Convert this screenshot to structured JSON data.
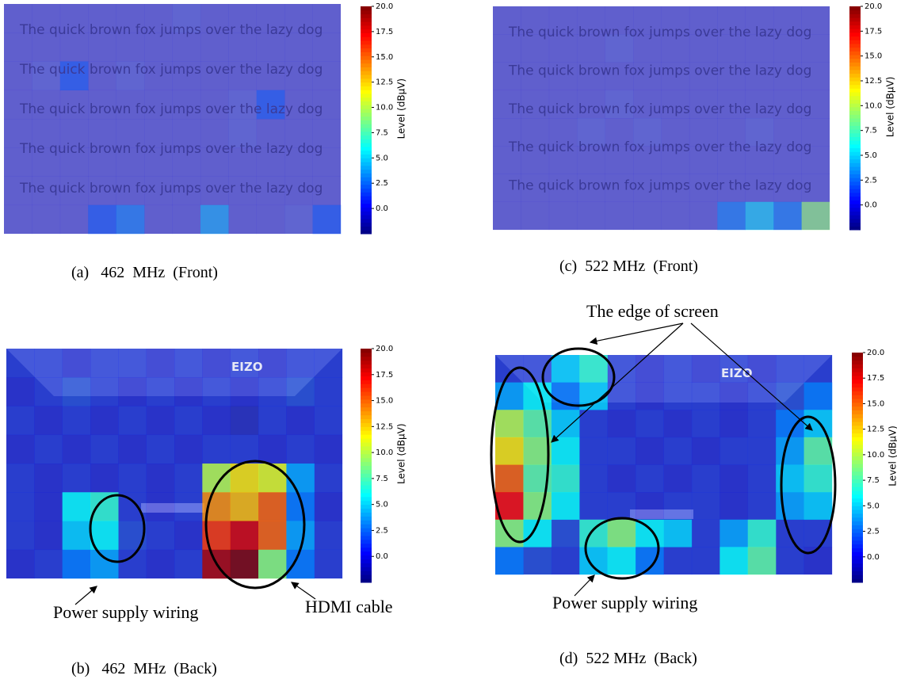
{
  "colorbar": {
    "label": "Level (dBμV)",
    "lim": [
      -2.5,
      20
    ],
    "ticks": [
      {
        "value": 0,
        "label": "0.0"
      },
      {
        "value": 2.5,
        "label": "2.5"
      },
      {
        "value": 5,
        "label": "5.0"
      },
      {
        "value": 7.5,
        "label": "7.5"
      },
      {
        "value": 10,
        "label": "10.0"
      },
      {
        "value": 12.5,
        "label": "12.5"
      },
      {
        "value": 15,
        "label": "15.0"
      },
      {
        "value": 17.5,
        "label": "17.5"
      },
      {
        "value": 20,
        "label": "20.0"
      }
    ]
  },
  "panels": [
    {
      "caption": "(a)   462  MHz  (Front)",
      "lines": [
        "The quick brown fox jumps over the lazy dog",
        "The quick brown fox jumps over the lazy dog",
        "The quick brown fox jumps over the lazy dog",
        "The quick brown fox jumps over the lazy dog",
        "The quick brown fox jumps over the lazy dog"
      ],
      "heatmap": [
        [
          0,
          0,
          0,
          0,
          0,
          0,
          1,
          0,
          0,
          0,
          0,
          0
        ],
        [
          0,
          0,
          0,
          0,
          0,
          0,
          0,
          0,
          0,
          0,
          0,
          0
        ],
        [
          0,
          1,
          2,
          0,
          1,
          0,
          0,
          0,
          0,
          0,
          0,
          0
        ],
        [
          0,
          0,
          0,
          0,
          0,
          0,
          0,
          0,
          1,
          2,
          0,
          0
        ],
        [
          0,
          0,
          0,
          0,
          0,
          0,
          0,
          0,
          1,
          0,
          0,
          0
        ],
        [
          0,
          0,
          0,
          0,
          0,
          0,
          0,
          0,
          0,
          0,
          0,
          0
        ],
        [
          0,
          0,
          0,
          0,
          0,
          0,
          0,
          0,
          0,
          0,
          0,
          0
        ],
        [
          0,
          0,
          0,
          2,
          3,
          0,
          0,
          4,
          0,
          0,
          1,
          2
        ]
      ]
    },
    {
      "caption": "(c)  522 MHz  (Front)",
      "lines": [
        "The quick brown fox jumps over the lazy dog",
        "The quick brown fox jumps over the lazy dog",
        "The quick brown fox jumps over the lazy dog",
        "The quick brown fox jumps over the lazy dog",
        "The quick brown fox jumps over the lazy dog"
      ],
      "heatmap": [
        [
          0,
          0,
          0,
          0,
          0,
          0,
          0,
          0,
          0,
          0,
          0,
          0
        ],
        [
          0,
          0,
          0,
          0,
          1,
          0,
          0,
          0,
          0,
          0,
          0,
          0
        ],
        [
          0,
          0,
          0,
          0,
          0,
          0,
          0,
          0,
          0,
          0,
          0,
          0
        ],
        [
          0,
          0,
          0,
          0,
          1,
          0,
          0,
          0,
          0,
          0,
          0,
          0
        ],
        [
          0,
          0,
          0,
          1,
          0,
          1,
          0,
          0,
          0,
          1,
          0,
          0
        ],
        [
          0,
          0,
          0,
          0,
          0,
          0,
          0,
          0,
          0,
          0,
          0,
          0
        ],
        [
          0,
          0,
          0,
          0,
          0,
          0,
          0,
          0,
          0,
          0,
          0,
          0
        ],
        [
          0,
          0,
          0,
          0,
          0,
          0,
          0,
          0,
          3,
          5,
          3,
          9
        ]
      ]
    },
    {
      "caption": "(b)   462  MHz  (Back)",
      "logo": "EIZO",
      "heatmap": [
        [
          1,
          1,
          0,
          1,
          1,
          0,
          1,
          0,
          1,
          0,
          1,
          1
        ],
        [
          0,
          1,
          2,
          1,
          0,
          1,
          0,
          1,
          0,
          1,
          2,
          1
        ],
        [
          1,
          0,
          1,
          0,
          1,
          0,
          1,
          0,
          -1,
          1,
          0,
          1
        ],
        [
          0,
          1,
          0,
          1,
          0,
          1,
          0,
          1,
          1,
          0,
          1,
          0
        ],
        [
          1,
          0,
          1,
          0,
          1,
          0,
          1,
          10,
          12,
          11,
          4,
          1
        ],
        [
          1,
          0,
          6,
          7,
          1,
          0,
          1,
          14,
          13,
          15,
          3,
          0
        ],
        [
          1,
          0,
          5,
          6,
          2,
          1,
          0,
          16,
          18,
          15,
          4,
          1
        ],
        [
          0,
          1,
          3,
          4,
          1,
          0,
          1,
          19,
          20,
          9,
          3,
          1
        ]
      ]
    },
    {
      "caption": "(d)  522 MHz  (Back)",
      "logo": "EIZO",
      "heatmap": [
        [
          1,
          1,
          5,
          7,
          1,
          0,
          1,
          0,
          1,
          0,
          1,
          1
        ],
        [
          4,
          6,
          3,
          5,
          1,
          0,
          1,
          1,
          0,
          1,
          2,
          3
        ],
        [
          10,
          8,
          5,
          1,
          0,
          1,
          0,
          1,
          0,
          1,
          3,
          5
        ],
        [
          12,
          9,
          6,
          1,
          1,
          0,
          1,
          0,
          1,
          1,
          4,
          8
        ],
        [
          15,
          8,
          7,
          1,
          0,
          1,
          0,
          1,
          0,
          1,
          5,
          7
        ],
        [
          17,
          9,
          6,
          1,
          1,
          0,
          1,
          1,
          0,
          1,
          4,
          5
        ],
        [
          9,
          6,
          2,
          7,
          9,
          6,
          5,
          1,
          4,
          7,
          1,
          1
        ],
        [
          3,
          2,
          1,
          5,
          6,
          3,
          1,
          1,
          6,
          8,
          1,
          0
        ]
      ]
    }
  ],
  "annotations": {
    "edge": "The edge of screen",
    "power_b": "Power supply wiring",
    "hdmi": "HDMI cable",
    "power_d": "Power supply wiring"
  }
}
